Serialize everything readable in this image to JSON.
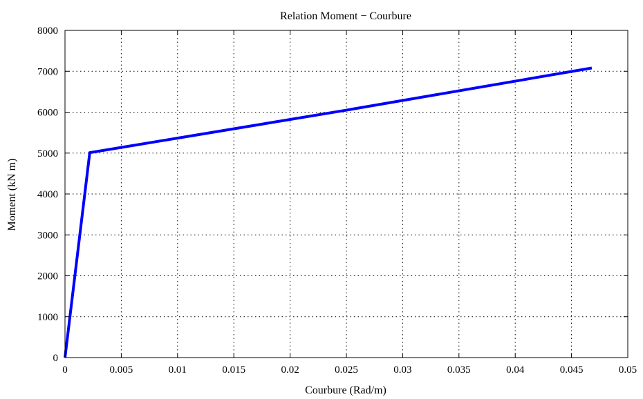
{
  "chart_data": {
    "type": "line",
    "title": "Relation Moment − Courbure",
    "xlabel": "Courbure (Rad/m)",
    "ylabel": "Moment (kN m)",
    "xlim": [
      0,
      0.05
    ],
    "ylim": [
      0,
      8000
    ],
    "xticks": [
      0,
      0.005,
      0.01,
      0.015,
      0.02,
      0.025,
      0.03,
      0.035,
      0.04,
      0.045,
      0.05
    ],
    "xtick_labels": [
      "0",
      "0.005",
      "0.01",
      "0.015",
      "0.02",
      "0.025",
      "0.03",
      "0.035",
      "0.04",
      "0.045",
      "0.05"
    ],
    "yticks": [
      0,
      1000,
      2000,
      3000,
      4000,
      5000,
      6000,
      7000,
      8000
    ],
    "ytick_labels": [
      "0",
      "1000",
      "2000",
      "3000",
      "4000",
      "5000",
      "6000",
      "7000",
      "8000"
    ],
    "grid": true,
    "grid_style": "dotted",
    "series": [
      {
        "color": "#0000ff",
        "x": [
          0,
          0.0022,
          0.025,
          0.0468
        ],
        "y": [
          0,
          5010,
          6050,
          7080
        ]
      }
    ]
  }
}
